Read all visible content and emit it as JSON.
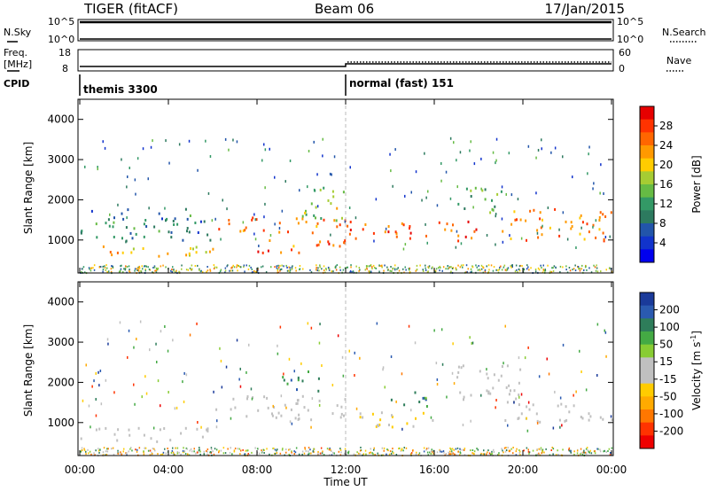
{
  "header": {
    "title": "TIGER (fitACF)",
    "beam": "Beam 06",
    "date": "17/Jan/2015"
  },
  "top_panels": {
    "nsky_label": "N.Sky",
    "nsky_ticks": [
      "10^5",
      "10^0"
    ],
    "nsearch_label": "N.Search",
    "nsearch_ticks": [
      "10^5",
      "10^0"
    ],
    "freq_label_line1": "Freq.",
    "freq_label_line2": "[MHz]",
    "freq_ticks": [
      "18",
      "8"
    ],
    "nave_label": "Nave",
    "nave_ticks": [
      "60",
      "0"
    ],
    "cpid_label": "CPID",
    "cpid_left": "themis 3300",
    "cpid_right": "normal (fast) 151"
  },
  "power_colorbar": {
    "label": "Power [dB]",
    "ticks": [
      "28",
      "24",
      "20",
      "16",
      "12",
      "8",
      "4"
    ],
    "colors": [
      "#e60000",
      "#ff3300",
      "#ff6600",
      "#ff9900",
      "#ffcc00",
      "#a6cc33",
      "#66bb44",
      "#339966",
      "#2d7a5f",
      "#2255aa",
      "#1133cc",
      "#0000ee"
    ]
  },
  "velocity_colorbar": {
    "label_main": "Velocity [m s",
    "label_sup": "-1",
    "label_end": "]",
    "ticks": [
      "200",
      "100",
      "50",
      "15",
      "-15",
      "-50",
      "-100",
      "-200"
    ],
    "colors": [
      "#1a3a9a",
      "#2a5ab0",
      "#2e7d5a",
      "#44aa44",
      "#88cc33",
      "#c0c0c0",
      "#c0c0c0",
      "#ffcc00",
      "#ffaa00",
      "#ff7700",
      "#ff3300",
      "#ee0000"
    ]
  },
  "chart_data": [
    {
      "type": "heatmap",
      "title": "",
      "ylabel": "Slant Range [km]",
      "xlabel": "",
      "ylim": [
        180,
        4500
      ],
      "yticks": [
        "4000",
        "3000",
        "2000",
        "1000"
      ],
      "x": [
        "00:00",
        "04:00",
        "08:00",
        "12:00",
        "16:00",
        "20:00",
        "00:00"
      ],
      "colorbar": "Power [dB]",
      "bands": [
        {
          "t0": 0,
          "t1": 6,
          "r0": 600,
          "r1": 900,
          "level": 20
        },
        {
          "t0": 0,
          "t1": 6,
          "r0": 1000,
          "r1": 1800,
          "level": 8
        },
        {
          "t0": 6,
          "t1": 12,
          "r0": 1200,
          "r1": 1600,
          "level": 24
        },
        {
          "t0": 8,
          "t1": 12,
          "r0": 700,
          "r1": 1100,
          "level": 24
        },
        {
          "t0": 10,
          "t1": 12,
          "r0": 1500,
          "r1": 2400,
          "level": 16
        },
        {
          "t0": 12,
          "t1": 18,
          "r0": 1000,
          "r1": 1500,
          "level": 26
        },
        {
          "t0": 17,
          "t1": 19,
          "r0": 1700,
          "r1": 2400,
          "level": 12
        },
        {
          "t0": 19,
          "t1": 24,
          "r0": 1000,
          "r1": 1800,
          "level": 22
        }
      ]
    },
    {
      "type": "heatmap",
      "title": "",
      "ylabel": "Slant Range [km]",
      "xlabel": "Time UT",
      "ylim": [
        180,
        4500
      ],
      "yticks": [
        "4000",
        "3000",
        "2000",
        "1000"
      ],
      "x": [
        "00:00",
        "04:00",
        "08:00",
        "12:00",
        "16:00",
        "20:00",
        "00:00"
      ],
      "colorbar": "Velocity [m s-1]",
      "bands": [
        {
          "t0": 0,
          "t1": 6,
          "r0": 550,
          "r1": 900,
          "velocity": 0
        },
        {
          "t0": 6,
          "t1": 12,
          "r0": 1100,
          "r1": 1700,
          "velocity": 0
        },
        {
          "t0": 9,
          "t1": 11,
          "r0": 1800,
          "r1": 2300,
          "velocity": 150
        },
        {
          "t0": 12,
          "t1": 16,
          "r0": 900,
          "r1": 1300,
          "velocity": -50
        },
        {
          "t0": 14,
          "t1": 16,
          "r0": 1400,
          "r1": 1800,
          "velocity": 150
        },
        {
          "t0": 17,
          "t1": 20,
          "r0": 1500,
          "r1": 2500,
          "velocity": 0
        },
        {
          "t0": 19,
          "t1": 24,
          "r0": 1000,
          "r1": 1500,
          "velocity": 0
        }
      ]
    }
  ]
}
